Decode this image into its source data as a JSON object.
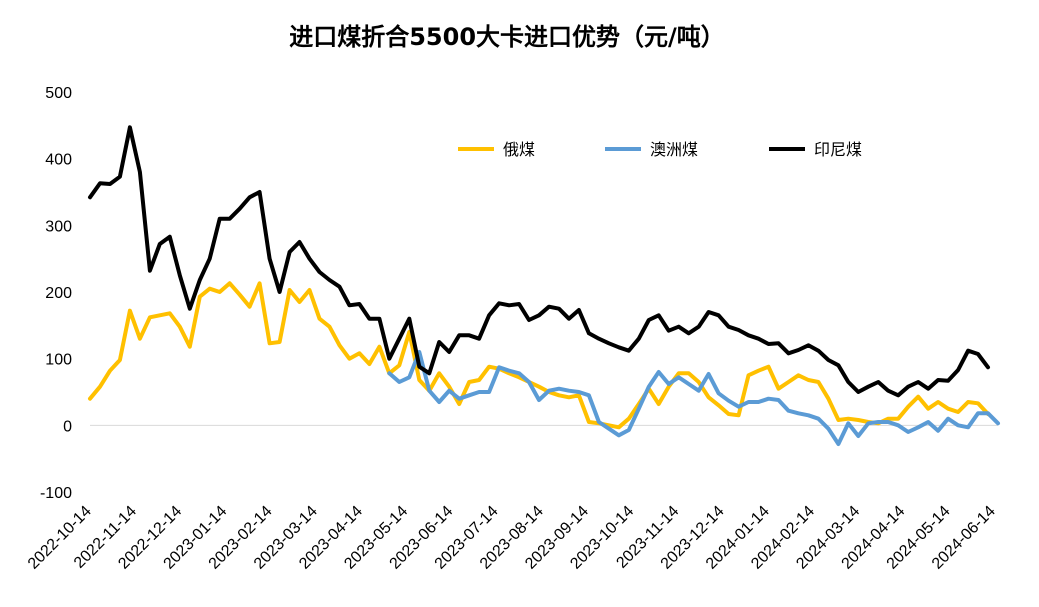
{
  "chart_data": {
    "type": "line",
    "title": "进口煤折合5500大卡进口优势（元/吨）",
    "xlabel": "",
    "ylabel": "",
    "ylim": [
      -100,
      500
    ],
    "yticks": [
      "500",
      "400",
      "300",
      "200",
      "100",
      "0",
      "-100"
    ],
    "x_tick_labels": [
      "2022-10-14",
      "2022-11-14",
      "2022-12-14",
      "2023-01-14",
      "2023-02-14",
      "2023-03-14",
      "2023-04-14",
      "2023-05-14",
      "2023-06-14",
      "2023-07-14",
      "2023-08-14",
      "2023-09-14",
      "2023-10-14",
      "2023-11-14",
      "2023-12-14",
      "2024-01-14",
      "2024-02-14",
      "2024-03-14",
      "2024-04-14",
      "2024-05-14",
      "2024-06-14"
    ],
    "legend_position": "top-right",
    "grid": false,
    "colors": {
      "russia": "#FFC000",
      "australia": "#5B9BD5",
      "indonesia": "#000000"
    },
    "series": [
      {
        "name": "俄煤",
        "key": "russia",
        "start_index": 0,
        "values": [
          40,
          58,
          82,
          98,
          172,
          130,
          162,
          165,
          168,
          148,
          118,
          193,
          205,
          200,
          213,
          196,
          178,
          213,
          123,
          125,
          203,
          185,
          203,
          160,
          148,
          120,
          100,
          108,
          92,
          118,
          78,
          90,
          140,
          68,
          52,
          78,
          58,
          32,
          65,
          68,
          88,
          85,
          78,
          72,
          65,
          58,
          50,
          45,
          42,
          45,
          5,
          3,
          0,
          -3,
          10,
          32,
          55,
          32,
          58,
          78,
          78,
          65,
          42,
          30,
          17,
          15,
          75,
          82,
          88,
          55,
          65,
          75,
          68,
          65,
          40,
          8,
          10,
          8,
          5,
          3,
          10,
          10,
          28,
          43,
          25,
          35,
          25,
          20,
          35,
          33,
          17
        ]
      },
      {
        "name": "澳洲煤",
        "key": "australia",
        "start_index": 30,
        "values": [
          78,
          65,
          72,
          110,
          52,
          35,
          52,
          40,
          45,
          50,
          50,
          87,
          82,
          78,
          65,
          38,
          52,
          55,
          52,
          50,
          45,
          5,
          -5,
          -15,
          -7,
          25,
          58,
          80,
          62,
          72,
          62,
          52,
          77,
          48,
          37,
          28,
          35,
          35,
          40,
          38,
          22,
          18,
          15,
          10,
          -5,
          -28,
          3,
          -16,
          3,
          5,
          5,
          0,
          -10,
          -3,
          5,
          -8,
          10,
          0,
          -3,
          18,
          18,
          3
        ]
      },
      {
        "name": "印尼煤",
        "key": "indonesia",
        "start_index": 0,
        "values": [
          342,
          363,
          362,
          373,
          447,
          380,
          232,
          272,
          283,
          225,
          175,
          218,
          250,
          310,
          310,
          325,
          342,
          350,
          250,
          200,
          260,
          275,
          250,
          230,
          218,
          208,
          180,
          182,
          160,
          160,
          100,
          130,
          160,
          88,
          78,
          125,
          110,
          135,
          135,
          130,
          165,
          183,
          180,
          182,
          158,
          165,
          178,
          175,
          160,
          173,
          138,
          130,
          123,
          117,
          112,
          130,
          158,
          165,
          142,
          148,
          138,
          148,
          170,
          165,
          148,
          143,
          135,
          130,
          122,
          123,
          108,
          113,
          120,
          112,
          98,
          90,
          65,
          50,
          58,
          65,
          52,
          45,
          58,
          65,
          55,
          68,
          67,
          83,
          112,
          107,
          87
        ]
      }
    ]
  }
}
